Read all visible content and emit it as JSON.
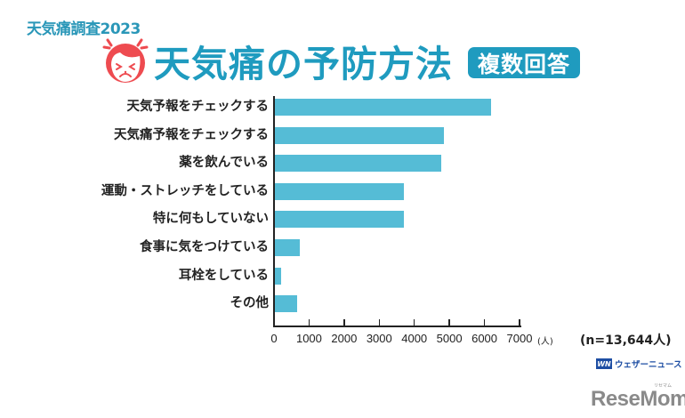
{
  "header": {
    "survey_label": "天気痛調査2023",
    "title": "天気痛の予防方法",
    "badge": "複数回答",
    "icon": "headache-face-icon"
  },
  "chart_data": {
    "type": "bar",
    "orientation": "horizontal",
    "title": "天気痛の予防方法",
    "subtitle": "複数回答",
    "categories": [
      "天気予報をチェックする",
      "天気痛予報をチェックする",
      "薬を飲んでいる",
      "運動・ストレッチをしている",
      "特に何もしていない",
      "食事に気をつけている",
      "耳栓をしている",
      "その他"
    ],
    "values": [
      6160,
      4830,
      4740,
      3690,
      3670,
      710,
      185,
      640
    ],
    "xlabel": "(人)",
    "ylabel": "",
    "xlim": [
      0,
      7000
    ],
    "x_ticks": [
      "0",
      "1000",
      "2000",
      "3000",
      "4000",
      "5000",
      "6000",
      "7000"
    ],
    "grid": false,
    "legend": null,
    "bar_color": "#55bcd6",
    "sample_size": "(n=13,644人)"
  },
  "axis": {
    "unit": "(人)",
    "ticks": [
      "0",
      "1000",
      "2000",
      "3000",
      "4000",
      "5000",
      "6000",
      "7000"
    ]
  },
  "footer": {
    "n_label": "(n=13,644人)",
    "source_mark": "WN",
    "source_name": "ウェザーニュース",
    "publisher": "ReseMom",
    "publisher_ruby": "リセマム"
  },
  "colors": {
    "accent": "#1f9bbf",
    "bar": "#55bcd6",
    "face": "#ee4b50"
  }
}
